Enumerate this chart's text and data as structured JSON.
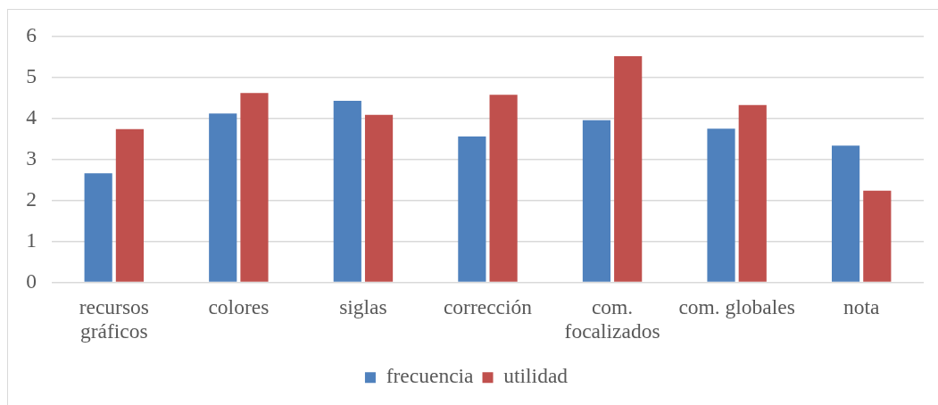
{
  "chart_data": {
    "type": "bar",
    "categories": [
      "recursos gráficos",
      "colores",
      "siglas",
      "corrección",
      "com. focalizados",
      "com. globales",
      "nota"
    ],
    "series": [
      {
        "name": "frecuencia",
        "color": "#4f81bd",
        "values": [
          2.66,
          4.12,
          4.43,
          3.56,
          3.96,
          3.75,
          3.34
        ]
      },
      {
        "name": "utilidad",
        "color": "#c0504d",
        "values": [
          3.74,
          4.62,
          4.09,
          4.58,
          5.52,
          4.33,
          2.24
        ]
      }
    ],
    "ylim": [
      0,
      6
    ],
    "yticks": [
      0,
      1,
      2,
      3,
      4,
      5,
      6
    ],
    "grid": "y",
    "legend": "bottom"
  }
}
